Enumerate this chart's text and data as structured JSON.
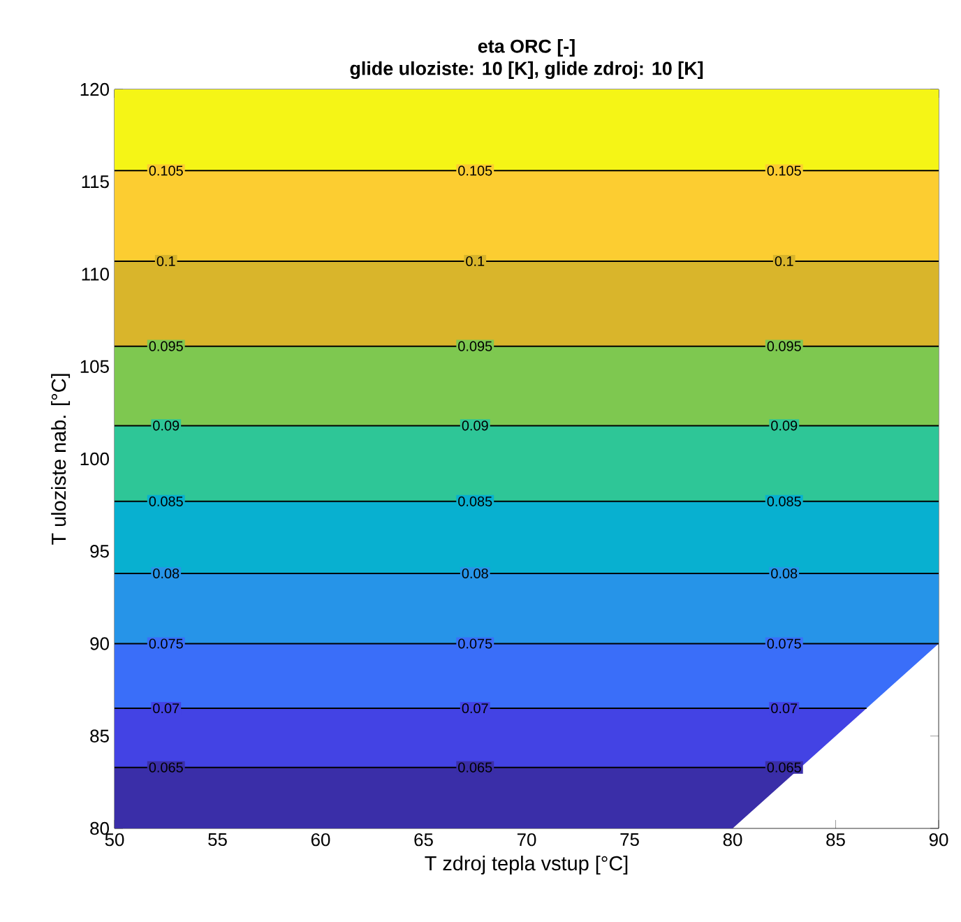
{
  "chart_data": {
    "type": "line",
    "title": "eta ORC [-]",
    "subtitle": "glide uloziste: 10 [K], glide zdroj: 10 [K]",
    "xlabel": "T zdroj tepla vstup [°C]",
    "ylabel": "T uloziste nab. [°C]",
    "xlim": [
      50,
      90
    ],
    "ylim": [
      80,
      120
    ],
    "xticks": [
      50,
      55,
      60,
      65,
      70,
      75,
      80,
      85,
      90
    ],
    "yticks": [
      80,
      85,
      90,
      95,
      100,
      105,
      110,
      115,
      120
    ],
    "bands": [
      {
        "axis": "y",
        "from": 80,
        "to": 83.3,
        "color": "#3a2ea8"
      },
      {
        "axis": "y",
        "from": 83.3,
        "to": 86.5,
        "color": "#4343e4"
      },
      {
        "axis": "y",
        "from": 86.5,
        "to": 90,
        "color": "#3a6ef9"
      },
      {
        "axis": "y",
        "from": 90,
        "to": 93.8,
        "color": "#2694e8"
      },
      {
        "axis": "y",
        "from": 93.8,
        "to": 97.7,
        "color": "#08b0d0"
      },
      {
        "axis": "y",
        "from": 97.7,
        "to": 101.8,
        "color": "#2ec697"
      },
      {
        "axis": "y",
        "from": 101.8,
        "to": 106.1,
        "color": "#7ec850"
      },
      {
        "axis": "y",
        "from": 106.1,
        "to": 110.7,
        "color": "#d9b52b"
      },
      {
        "axis": "y",
        "from": 110.7,
        "to": 115.6,
        "color": "#fccd31"
      },
      {
        "axis": "y",
        "from": 115.6,
        "to": 120,
        "color": "#f5f516"
      }
    ],
    "series": [
      {
        "name": "0.065",
        "color": "#000000",
        "x": [
          50,
          83.3
        ],
        "values": [
          83.3,
          83.3
        ]
      },
      {
        "name": "0.07",
        "color": "#000000",
        "x": [
          50,
          86.5
        ],
        "values": [
          86.5,
          86.5
        ]
      },
      {
        "name": "0.075",
        "color": "#000000",
        "x": [
          50,
          90
        ],
        "values": [
          90,
          90
        ]
      },
      {
        "name": "0.08",
        "color": "#000000",
        "x": [
          50,
          90
        ],
        "values": [
          93.8,
          93.8
        ]
      },
      {
        "name": "0.085",
        "color": "#000000",
        "x": [
          50,
          90
        ],
        "values": [
          97.7,
          97.7
        ]
      },
      {
        "name": "0.09",
        "color": "#000000",
        "x": [
          50,
          90
        ],
        "values": [
          101.8,
          101.8
        ]
      },
      {
        "name": "0.095",
        "color": "#000000",
        "x": [
          50,
          90
        ],
        "values": [
          106.1,
          106.1
        ]
      },
      {
        "name": "0.1",
        "color": "#000000",
        "x": [
          50,
          90
        ],
        "values": [
          110.7,
          110.7
        ]
      },
      {
        "name": "0.105",
        "color": "#000000",
        "x": [
          50,
          90
        ],
        "values": [
          115.6,
          115.6
        ]
      }
    ]
  }
}
